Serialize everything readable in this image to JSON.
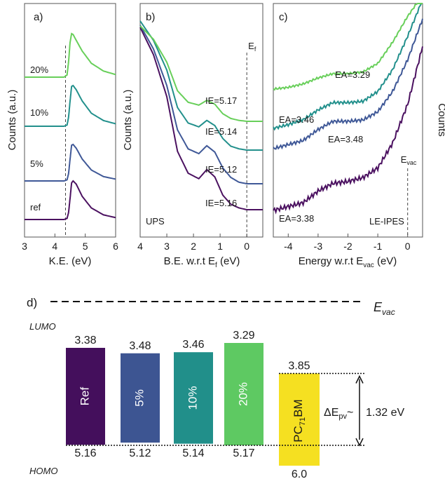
{
  "chart_data": [
    {
      "panel": "a)",
      "type": "line",
      "xlabel": "K.E. (eV)",
      "ylabel": "Counts (a.u.)",
      "xlim": [
        3,
        6
      ],
      "xticks": [
        "3",
        "4",
        "5",
        "6"
      ],
      "reference_line_x": 4.35,
      "series": [
        {
          "name": "ref",
          "color": "#4b1160",
          "x": [
            3.0,
            4.0,
            4.3,
            4.4,
            4.45,
            4.5,
            4.55,
            4.6,
            4.7,
            4.9,
            5.2,
            5.6,
            6.0
          ],
          "values": [
            0.0,
            0.0,
            0.0,
            0.03,
            0.18,
            0.55,
            0.95,
            1.0,
            0.92,
            0.6,
            0.3,
            0.12,
            0.05
          ]
        },
        {
          "name": "5%",
          "color": "#3f5897",
          "x": [
            3.0,
            4.0,
            4.3,
            4.4,
            4.45,
            4.5,
            4.55,
            4.6,
            4.7,
            4.9,
            5.2,
            5.6,
            6.0
          ],
          "values": [
            0.0,
            0.0,
            0.0,
            0.03,
            0.2,
            0.6,
            0.98,
            1.0,
            0.9,
            0.6,
            0.3,
            0.12,
            0.05
          ]
        },
        {
          "name": "10%",
          "color": "#22908c",
          "x": [
            3.0,
            4.0,
            4.3,
            4.4,
            4.45,
            4.5,
            4.55,
            4.6,
            4.7,
            4.9,
            5.2,
            5.6,
            6.0
          ],
          "values": [
            0.0,
            0.0,
            0.0,
            0.03,
            0.22,
            0.62,
            0.98,
            1.0,
            0.9,
            0.62,
            0.32,
            0.14,
            0.06
          ]
        },
        {
          "name": "20%",
          "color": "#68cf5a",
          "x": [
            3.0,
            4.0,
            4.3,
            4.4,
            4.45,
            4.5,
            4.55,
            4.6,
            4.7,
            4.9,
            5.2,
            5.6,
            6.0
          ],
          "values": [
            0.0,
            0.0,
            0.0,
            0.05,
            0.35,
            0.8,
            1.0,
            0.98,
            0.85,
            0.6,
            0.32,
            0.14,
            0.06
          ]
        }
      ]
    },
    {
      "panel": "b)",
      "type": "line",
      "xlabel": "B.E. w.r.t E",
      "xlabel_sub": "f",
      "xlabel_tail": " (eV)",
      "ylabel": "Counts (a.u.)",
      "xlim": [
        4,
        -0.6
      ],
      "xticks": [
        "4",
        "3",
        "2",
        "1",
        "0"
      ],
      "reference_line_x": 0,
      "reference_line_label": "E",
      "reference_line_label_sub": "f",
      "corner_text": "UPS",
      "series": [
        {
          "name": "ref",
          "color": "#4b1160",
          "label": "IE=5.16",
          "x": [
            4.0,
            3.5,
            3.0,
            2.6,
            2.2,
            1.8,
            1.5,
            1.2,
            0.9,
            0.6,
            0.3,
            0.0,
            -0.6
          ],
          "values": [
            1.0,
            0.85,
            0.62,
            0.32,
            0.2,
            0.17,
            0.22,
            0.18,
            0.08,
            0.03,
            0.01,
            0.0,
            0.0
          ]
        },
        {
          "name": "5%",
          "color": "#3f5897",
          "label": "IE=5.12",
          "x": [
            4.0,
            3.5,
            3.0,
            2.6,
            2.2,
            1.8,
            1.5,
            1.2,
            0.9,
            0.6,
            0.3,
            0.0,
            -0.6
          ],
          "values": [
            1.0,
            0.85,
            0.62,
            0.34,
            0.22,
            0.19,
            0.24,
            0.2,
            0.1,
            0.04,
            0.01,
            0.0,
            0.0
          ]
        },
        {
          "name": "10%",
          "color": "#22908c",
          "label": "IE=5.14",
          "x": [
            4.0,
            3.5,
            3.0,
            2.6,
            2.2,
            1.8,
            1.5,
            1.2,
            0.9,
            0.6,
            0.3,
            0.0,
            -0.6
          ],
          "values": [
            1.0,
            0.85,
            0.62,
            0.33,
            0.21,
            0.18,
            0.23,
            0.19,
            0.09,
            0.03,
            0.01,
            0.0,
            0.0
          ]
        },
        {
          "name": "20%",
          "color": "#68cf5a",
          "label": "IE=5.17",
          "x": [
            4.0,
            3.5,
            3.0,
            2.6,
            2.2,
            1.8,
            1.5,
            1.2,
            0.9,
            0.6,
            0.3,
            0.0,
            -0.6
          ],
          "values": [
            1.0,
            0.86,
            0.62,
            0.32,
            0.2,
            0.17,
            0.22,
            0.18,
            0.08,
            0.03,
            0.01,
            0.0,
            0.0
          ]
        }
      ]
    },
    {
      "panel": "c)",
      "type": "line",
      "xlabel": "Energy w.r.t E",
      "xlabel_sub": "vac",
      "xlabel_tail": " (eV)",
      "ylabel": "Counts",
      "xlim": [
        -4.5,
        0.5
      ],
      "xticks": [
        "-4",
        "-3",
        "-2",
        "-1",
        "0"
      ],
      "reference_line_x": 0,
      "reference_line_label": "E",
      "reference_line_label_sub": "vac",
      "corner_text": "LE-IPES",
      "series": [
        {
          "name": "ref",
          "color": "#4b1160",
          "label": "EA=3.38",
          "x": [
            -4.5,
            -4.0,
            -3.5,
            -3.0,
            -2.5,
            -2.0,
            -1.5,
            -1.0,
            -0.5,
            0.0,
            0.5
          ],
          "values": [
            0.0,
            0.02,
            0.04,
            0.1,
            0.14,
            0.15,
            0.17,
            0.22,
            0.35,
            0.55,
            0.85
          ]
        },
        {
          "name": "5%",
          "color": "#3f5897",
          "label": "EA=3.48",
          "x": [
            -4.5,
            -4.0,
            -3.5,
            -3.0,
            -2.5,
            -2.0,
            -1.5,
            -1.0,
            -0.5,
            0.0,
            0.5
          ],
          "values": [
            0.0,
            0.03,
            0.06,
            0.14,
            0.2,
            0.2,
            0.21,
            0.27,
            0.42,
            0.65,
            0.95
          ]
        },
        {
          "name": "10%",
          "color": "#22908c",
          "label": "EA=3.46",
          "x": [
            -4.5,
            -4.0,
            -3.5,
            -3.0,
            -2.5,
            -2.0,
            -1.5,
            -1.0,
            -0.5,
            0.0,
            0.5
          ],
          "values": [
            0.0,
            0.03,
            0.07,
            0.15,
            0.21,
            0.21,
            0.22,
            0.3,
            0.48,
            0.75,
            1.05
          ]
        },
        {
          "name": "20%",
          "color": "#68cf5a",
          "label": "EA=3.29",
          "x": [
            -4.5,
            -4.0,
            -3.5,
            -3.0,
            -2.5,
            -2.0,
            -1.5,
            -1.0,
            -0.5,
            0.0,
            0.5
          ],
          "values": [
            0.0,
            0.02,
            0.06,
            0.13,
            0.18,
            0.18,
            0.2,
            0.3,
            0.55,
            0.85,
            1.1
          ]
        }
      ]
    },
    {
      "panel": "d)",
      "type": "bar",
      "vacuum_label": "E",
      "vacuum_label_sub": "vac",
      "lumo_label": "LUMO",
      "homo_label": "HOMO",
      "categories": [
        "Ref",
        "5%",
        "10%",
        "20%"
      ],
      "colors": [
        "#440f5c",
        "#3d5592",
        "#218f8a",
        "#5ec962"
      ],
      "lumo": [
        "3.38",
        "3.48",
        "3.46",
        "3.29"
      ],
      "homo": [
        "5.16",
        "5.12",
        "5.14",
        "5.17"
      ],
      "acceptor": {
        "label_a": "PC",
        "label_sub": "71",
        "label_b": "BM",
        "color": "#f5e021",
        "lumo": "3.85",
        "homo": "6.0"
      },
      "delta_label": "ΔE",
      "delta_sub": "pv",
      "delta_tail": "~",
      "delta_value": "1.32 eV"
    }
  ]
}
